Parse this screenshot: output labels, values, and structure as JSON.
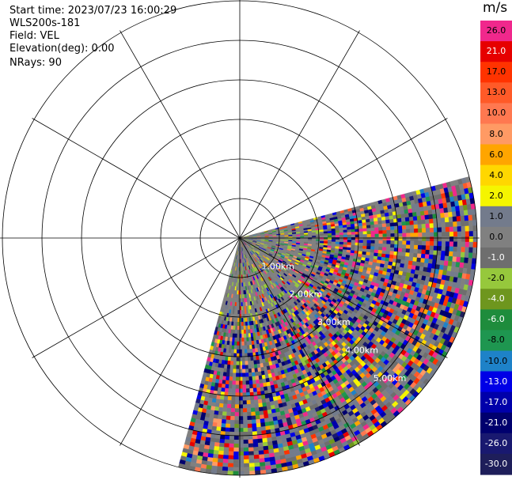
{
  "header": {
    "start_time": "Start time: 2023/07/23 16:00:29",
    "instrument": "WLS200s-181",
    "field": "Field: VEL",
    "elevation": "Elevation(deg): 0.00",
    "nrays": "NRays: 90"
  },
  "range_rings": [
    "1.00km",
    "2.00km",
    "3.00km",
    "4.00km",
    "5.00km"
  ],
  "colorbar": {
    "unit": "m/s",
    "entries": [
      {
        "label": "26.0",
        "color": "#f0288c",
        "text_color": "#000000"
      },
      {
        "label": "21.0",
        "color": "#e60000",
        "text_color": "#ffffff"
      },
      {
        "label": "17.0",
        "color": "#ff3300",
        "text_color": "#000000"
      },
      {
        "label": "13.0",
        "color": "#ff5a28",
        "text_color": "#000000"
      },
      {
        "label": "10.0",
        "color": "#ff7850",
        "text_color": "#000000"
      },
      {
        "label": "8.0",
        "color": "#ff9a64",
        "text_color": "#000000"
      },
      {
        "label": "6.0",
        "color": "#ffa500",
        "text_color": "#000000"
      },
      {
        "label": "4.0",
        "color": "#ffd700",
        "text_color": "#000000"
      },
      {
        "label": "2.0",
        "color": "#f5f500",
        "text_color": "#000000"
      },
      {
        "label": "1.0",
        "color": "#737b8c",
        "text_color": "#000000"
      },
      {
        "label": "0.0",
        "color": "#808080",
        "text_color": "#000000"
      },
      {
        "label": "-1.0",
        "color": "#6e6e6e",
        "text_color": "#ffffff"
      },
      {
        "label": "-2.0",
        "color": "#96c83c",
        "text_color": "#000000"
      },
      {
        "label": "-4.0",
        "color": "#6e961e",
        "text_color": "#ffffff"
      },
      {
        "label": "-6.0",
        "color": "#1e8c3c",
        "text_color": "#ffffff"
      },
      {
        "label": "-8.0",
        "color": "#1e9650",
        "text_color": "#000000"
      },
      {
        "label": "-10.0",
        "color": "#1e82c8",
        "text_color": "#000000"
      },
      {
        "label": "-13.0",
        "color": "#0000e6",
        "text_color": "#ffffff"
      },
      {
        "label": "-17.0",
        "color": "#0000aa",
        "text_color": "#ffffff"
      },
      {
        "label": "-21.0",
        "color": "#00006e",
        "text_color": "#ffffff"
      },
      {
        "label": "-26.0",
        "color": "#191970",
        "text_color": "#ffffff"
      },
      {
        "label": "-30.0",
        "color": "#1e1e5a",
        "text_color": "#ffffff"
      }
    ]
  }
}
